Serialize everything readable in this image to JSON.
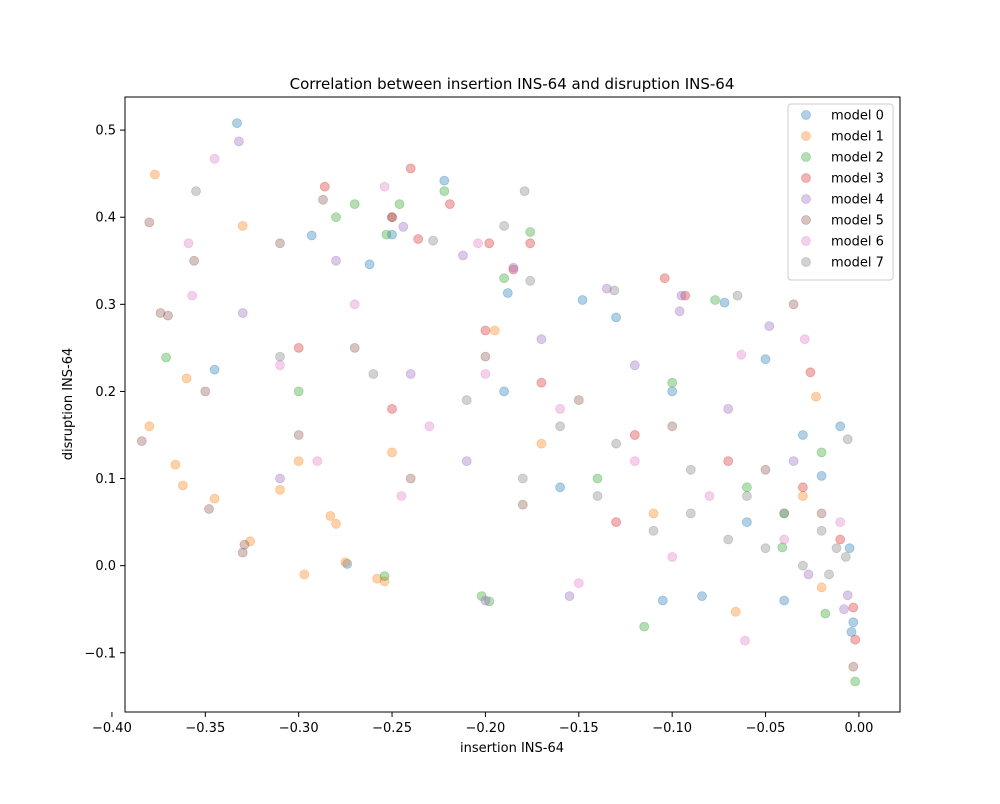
{
  "chart_data": {
    "type": "scatter",
    "title": "Correlation between insertion INS-64 and disruption INS-64",
    "xlabel": "insertion INS-64",
    "ylabel": "disruption INS-64",
    "xlim": [
      -0.393,
      0.022
    ],
    "ylim": [
      -0.168,
      0.538
    ],
    "xticks": [
      -0.4,
      -0.35,
      -0.3,
      -0.25,
      -0.2,
      -0.15,
      -0.1,
      -0.05,
      0.0
    ],
    "xtick_labels": [
      "−0.40",
      "−0.35",
      "−0.30",
      "−0.25",
      "−0.20",
      "−0.15",
      "−0.10",
      "−0.05",
      "0.00"
    ],
    "yticks": [
      -0.1,
      0.0,
      0.1,
      0.2,
      0.3,
      0.4,
      0.5
    ],
    "ytick_labels": [
      "−0.1",
      "0.0",
      "0.1",
      "0.2",
      "0.3",
      "0.4",
      "0.5"
    ],
    "grid": false,
    "legend_position": "top-right",
    "marker_alpha": 0.35,
    "series": [
      {
        "name": "model 0",
        "color": "#1f77b4",
        "points": [
          [
            -0.333,
            0.508
          ],
          [
            -0.222,
            0.442
          ],
          [
            -0.293,
            0.379
          ],
          [
            -0.262,
            0.346
          ],
          [
            -0.188,
            0.313
          ],
          [
            -0.148,
            0.305
          ],
          [
            -0.13,
            0.285
          ],
          [
            -0.072,
            0.302
          ],
          [
            -0.05,
            0.237
          ],
          [
            -0.345,
            0.225
          ],
          [
            -0.274,
            0.002
          ],
          [
            -0.084,
            -0.035
          ],
          [
            -0.105,
            -0.04
          ],
          [
            -0.04,
            -0.04
          ],
          [
            -0.004,
            -0.076
          ],
          [
            -0.003,
            -0.065
          ],
          [
            -0.02,
            0.103
          ],
          [
            -0.01,
            0.16
          ],
          [
            -0.03,
            0.15
          ],
          [
            -0.19,
            0.2
          ],
          [
            -0.1,
            0.2
          ],
          [
            -0.25,
            0.38
          ],
          [
            -0.16,
            0.09
          ],
          [
            -0.06,
            0.05
          ],
          [
            -0.005,
            0.02
          ]
        ]
      },
      {
        "name": "model 1",
        "color": "#ff7f0e",
        "points": [
          [
            -0.377,
            0.449
          ],
          [
            -0.33,
            0.39
          ],
          [
            -0.38,
            0.16
          ],
          [
            -0.366,
            0.116
          ],
          [
            -0.362,
            0.092
          ],
          [
            -0.345,
            0.077
          ],
          [
            -0.31,
            0.087
          ],
          [
            -0.297,
            -0.01
          ],
          [
            -0.254,
            -0.018
          ],
          [
            -0.258,
            -0.015
          ],
          [
            -0.326,
            0.028
          ],
          [
            -0.283,
            0.057
          ],
          [
            -0.066,
            -0.053
          ],
          [
            -0.275,
            0.004
          ],
          [
            -0.28,
            0.048
          ],
          [
            -0.36,
            0.215
          ],
          [
            -0.195,
            0.27
          ],
          [
            -0.25,
            0.13
          ],
          [
            -0.17,
            0.14
          ],
          [
            -0.023,
            0.194
          ],
          [
            -0.02,
            -0.025
          ],
          [
            -0.03,
            0.08
          ],
          [
            -0.11,
            0.06
          ],
          [
            -0.3,
            0.12
          ]
        ]
      },
      {
        "name": "model 2",
        "color": "#2ca02c",
        "points": [
          [
            -0.371,
            0.239
          ],
          [
            -0.253,
            0.38
          ],
          [
            -0.246,
            0.415
          ],
          [
            -0.222,
            0.43
          ],
          [
            -0.176,
            0.383
          ],
          [
            -0.28,
            0.4
          ],
          [
            -0.27,
            0.415
          ],
          [
            -0.115,
            -0.07
          ],
          [
            -0.198,
            -0.041
          ],
          [
            -0.202,
            -0.035
          ],
          [
            -0.254,
            -0.012
          ],
          [
            -0.002,
            -0.133
          ],
          [
            -0.018,
            -0.055
          ],
          [
            -0.077,
            0.305
          ],
          [
            -0.041,
            0.021
          ],
          [
            -0.02,
            0.13
          ],
          [
            -0.1,
            0.21
          ],
          [
            -0.06,
            0.09
          ],
          [
            -0.19,
            0.33
          ],
          [
            -0.3,
            0.2
          ],
          [
            -0.14,
            0.1
          ],
          [
            -0.04,
            0.06
          ]
        ]
      },
      {
        "name": "model 3",
        "color": "#d62728",
        "points": [
          [
            -0.24,
            0.456
          ],
          [
            -0.286,
            0.435
          ],
          [
            -0.219,
            0.415
          ],
          [
            -0.25,
            0.4
          ],
          [
            -0.198,
            0.37
          ],
          [
            -0.236,
            0.375
          ],
          [
            -0.176,
            0.37
          ],
          [
            -0.185,
            0.34
          ],
          [
            -0.104,
            0.33
          ],
          [
            -0.026,
            0.222
          ],
          [
            -0.002,
            -0.085
          ],
          [
            -0.003,
            -0.048
          ],
          [
            -0.093,
            0.31
          ],
          [
            -0.2,
            0.27
          ],
          [
            -0.17,
            0.21
          ],
          [
            -0.12,
            0.15
          ],
          [
            -0.07,
            0.12
          ],
          [
            -0.03,
            0.09
          ],
          [
            -0.25,
            0.18
          ],
          [
            -0.3,
            0.25
          ],
          [
            -0.13,
            0.05
          ],
          [
            -0.01,
            0.03
          ]
        ]
      },
      {
        "name": "model 4",
        "color": "#9467bd",
        "points": [
          [
            -0.332,
            0.487
          ],
          [
            -0.244,
            0.389
          ],
          [
            -0.212,
            0.356
          ],
          [
            -0.185,
            0.342
          ],
          [
            -0.135,
            0.318
          ],
          [
            -0.095,
            0.31
          ],
          [
            -0.008,
            -0.05
          ],
          [
            -0.006,
            -0.034
          ],
          [
            -0.027,
            -0.01
          ],
          [
            -0.2,
            -0.04
          ],
          [
            -0.155,
            -0.035
          ],
          [
            -0.096,
            0.292
          ],
          [
            -0.048,
            0.275
          ],
          [
            -0.24,
            0.22
          ],
          [
            -0.28,
            0.35
          ],
          [
            -0.17,
            0.26
          ],
          [
            -0.12,
            0.23
          ],
          [
            -0.07,
            0.18
          ],
          [
            -0.035,
            0.12
          ],
          [
            -0.21,
            0.12
          ],
          [
            -0.33,
            0.29
          ],
          [
            -0.31,
            0.1
          ]
        ]
      },
      {
        "name": "model 5",
        "color": "#8c564b",
        "points": [
          [
            -0.38,
            0.394
          ],
          [
            -0.374,
            0.29
          ],
          [
            -0.37,
            0.287
          ],
          [
            -0.384,
            0.143
          ],
          [
            -0.348,
            0.065
          ],
          [
            -0.329,
            0.024
          ],
          [
            -0.33,
            0.015
          ],
          [
            -0.003,
            -0.116
          ],
          [
            -0.035,
            0.3
          ],
          [
            -0.25,
            0.4
          ],
          [
            -0.287,
            0.42
          ],
          [
            -0.31,
            0.37
          ],
          [
            -0.356,
            0.35
          ],
          [
            -0.27,
            0.25
          ],
          [
            -0.2,
            0.24
          ],
          [
            -0.15,
            0.19
          ],
          [
            -0.1,
            0.16
          ],
          [
            -0.05,
            0.11
          ],
          [
            -0.02,
            0.06
          ],
          [
            -0.24,
            0.1
          ],
          [
            -0.18,
            0.07
          ],
          [
            -0.35,
            0.2
          ],
          [
            -0.3,
            0.15
          ]
        ]
      },
      {
        "name": "model 6",
        "color": "#e377c2",
        "points": [
          [
            -0.345,
            0.467
          ],
          [
            -0.254,
            0.435
          ],
          [
            -0.204,
            0.37
          ],
          [
            -0.359,
            0.37
          ],
          [
            -0.357,
            0.31
          ],
          [
            -0.029,
            0.26
          ],
          [
            -0.061,
            -0.086
          ],
          [
            -0.063,
            0.242
          ],
          [
            -0.245,
            0.08
          ],
          [
            -0.23,
            0.16
          ],
          [
            -0.2,
            0.22
          ],
          [
            -0.16,
            0.18
          ],
          [
            -0.12,
            0.12
          ],
          [
            -0.08,
            0.08
          ],
          [
            -0.04,
            0.03
          ],
          [
            -0.15,
            -0.02
          ],
          [
            -0.27,
            0.3
          ],
          [
            -0.31,
            0.23
          ],
          [
            -0.29,
            0.12
          ],
          [
            -0.1,
            0.01
          ],
          [
            -0.01,
            0.05
          ]
        ]
      },
      {
        "name": "model 7",
        "color": "#7f7f7f",
        "points": [
          [
            -0.355,
            0.43
          ],
          [
            -0.179,
            0.43
          ],
          [
            -0.228,
            0.373
          ],
          [
            -0.19,
            0.39
          ],
          [
            -0.176,
            0.327
          ],
          [
            -0.131,
            0.316
          ],
          [
            -0.065,
            0.31
          ],
          [
            -0.006,
            0.145
          ],
          [
            -0.31,
            0.24
          ],
          [
            -0.26,
            0.22
          ],
          [
            -0.21,
            0.19
          ],
          [
            -0.16,
            0.16
          ],
          [
            -0.13,
            0.14
          ],
          [
            -0.09,
            0.11
          ],
          [
            -0.06,
            0.08
          ],
          [
            -0.04,
            0.06
          ],
          [
            -0.02,
            0.04
          ],
          [
            -0.012,
            0.02
          ],
          [
            -0.007,
            0.01
          ],
          [
            -0.11,
            0.04
          ],
          [
            -0.07,
            0.03
          ],
          [
            -0.05,
            0.02
          ],
          [
            -0.03,
            0.0
          ],
          [
            -0.016,
            -0.01
          ],
          [
            -0.09,
            0.06
          ],
          [
            -0.14,
            0.08
          ],
          [
            -0.18,
            0.1
          ]
        ]
      }
    ]
  }
}
